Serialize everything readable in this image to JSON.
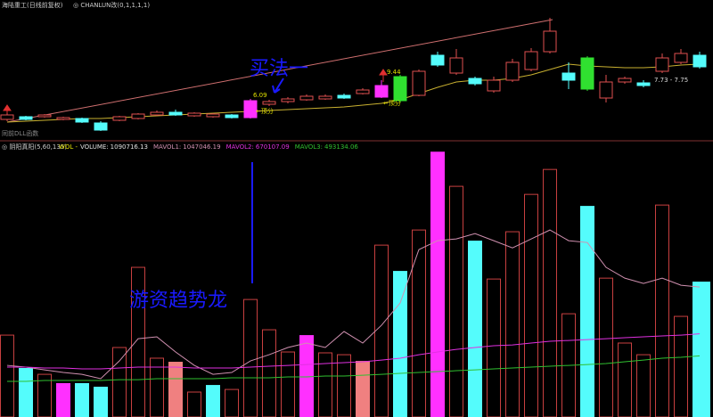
{
  "chart_data": [
    {
      "type": "candlestick",
      "title": "海陆重工(日线前复权)",
      "subtitle": "◎ CHANLUN改(0,1,1,1,1)",
      "footer": "同前DLL函数",
      "annotations": [
        "买法一",
        "6.09",
        "←顶分",
        "9.44",
        "←顶分",
        "7.73 - 7.75"
      ],
      "ylim": [
        4,
        12
      ],
      "open": [
        5.3,
        5.45,
        5.45,
        5.3,
        5.35,
        5.1,
        5.25,
        5.35,
        5.55,
        5.7,
        5.5,
        5.45,
        5.55,
        5.4,
        6.15,
        6.3,
        6.4,
        6.45,
        6.65,
        6.75,
        6.55,
        7.7,
        6.65,
        8.9,
        7.9,
        7.6,
        6.9,
        7.5,
        8.1,
        9.1,
        7.9,
        8.75,
        6.5,
        7.4,
        7.35,
        8.0,
        8.5,
        8.9
      ],
      "close": [
        5.55,
        5.3,
        5.55,
        5.4,
        5.15,
        4.7,
        5.45,
        5.6,
        5.7,
        5.55,
        5.65,
        5.6,
        5.4,
        6.35,
        6.3,
        6.45,
        6.6,
        6.6,
        6.5,
        6.95,
        7.2,
        6.35,
        8.0,
        8.35,
        8.75,
        7.3,
        7.5,
        8.5,
        9.1,
        10.25,
        7.5,
        7.0,
        7.4,
        7.6,
        7.2,
        8.75,
        9.0,
        8.25
      ],
      "high": [
        5.65,
        5.5,
        5.6,
        5.45,
        5.4,
        5.2,
        5.5,
        5.65,
        5.8,
        5.85,
        5.7,
        5.65,
        5.6,
        6.45,
        6.4,
        6.55,
        6.7,
        6.7,
        6.75,
        7.05,
        7.5,
        7.8,
        8.1,
        9.1,
        9.25,
        7.7,
        7.7,
        8.7,
        9.3,
        11.0,
        8.5,
        8.85,
        7.8,
        7.7,
        7.5,
        9.0,
        9.25,
        9.1
      ],
      "low": [
        5.2,
        5.25,
        5.4,
        5.25,
        5.1,
        4.65,
        5.2,
        5.3,
        5.5,
        5.5,
        5.45,
        5.4,
        5.35,
        5.35,
        6.05,
        6.2,
        6.35,
        6.4,
        6.45,
        6.7,
        6.5,
        6.25,
        6.6,
        8.25,
        7.8,
        7.2,
        6.8,
        7.4,
        8.0,
        9.0,
        7.0,
        6.9,
        6.25,
        7.3,
        7.1,
        7.9,
        8.4,
        8.15
      ],
      "colors": [
        "#e05050",
        "#54fcfc",
        "#e05050",
        "#e05050",
        "#54fcfc",
        "#54fcfc",
        "#e05050",
        "#e05050",
        "#e05050",
        "#54fcfc",
        "#e05050",
        "#e05050",
        "#54fcfc",
        "#ff30ff",
        "#e05050",
        "#e05050",
        "#e05050",
        "#e05050",
        "#54fcfc",
        "#e05050",
        "#ff30ff",
        "#30e030",
        "#e05050",
        "#54fcfc",
        "#e05050",
        "#54fcfc",
        "#e05050",
        "#e05050",
        "#e05050",
        "#e05050",
        "#54fcfc",
        "#30e030",
        "#e05050",
        "#e05050",
        "#54fcfc",
        "#e05050",
        "#e05050",
        "#54fcfc"
      ],
      "lines": [
        {
          "color": "#c8b030",
          "values": [
            5.15,
            5.2,
            5.25,
            5.3,
            5.35,
            5.35,
            5.4,
            5.45,
            5.5,
            5.55,
            5.6,
            5.65,
            5.7,
            5.75,
            5.8,
            5.85,
            5.9,
            5.95,
            6.0,
            6.1,
            6.2,
            6.4,
            6.75,
            7.1,
            7.4,
            7.5,
            7.5,
            7.6,
            7.8,
            8.1,
            8.4,
            8.3,
            8.25,
            8.2,
            8.2,
            8.25,
            8.35,
            8.4
          ]
        }
      ]
    },
    {
      "type": "bar",
      "title": "◎ 阴阳真阳(5,60,135)",
      "prefix": "WOL -",
      "annotations": [
        "游资趋势龙"
      ],
      "ylim": [
        0,
        2190000
      ],
      "colors": [
        "#c84040",
        "#54fcfc",
        "#c84040",
        "#ff30ff",
        "#54fcfc",
        "#54fcfc",
        "#c84040",
        "#c84040",
        "#c84040",
        "#f08080",
        "#c84040",
        "#54fcfc",
        "#c84040",
        "#c84040",
        "#c84040",
        "#c84040",
        "#ff30ff",
        "#c84040",
        "#c84040",
        "#f08080",
        "#c84040",
        "#54fcfc",
        "#c84040",
        "#ff30ff",
        "#c84040",
        "#54fcfc",
        "#c84040",
        "#c84040",
        "#c84040",
        "#c84040",
        "#c84040",
        "#54fcfc",
        "#c84040",
        "#c84040",
        "#c84040",
        "#c84040",
        "#c84040",
        "#54fcfc"
      ],
      "hollow": [
        true,
        false,
        true,
        false,
        false,
        false,
        true,
        true,
        true,
        false,
        true,
        false,
        true,
        true,
        true,
        true,
        false,
        true,
        true,
        false,
        true,
        false,
        true,
        false,
        true,
        false,
        true,
        true,
        true,
        true,
        true,
        false,
        true,
        true,
        true,
        true,
        true,
        false
      ],
      "series": [
        {
          "name": "VOLUME:",
          "color": "#e0e0e0",
          "values": [
            660000,
            395000,
            344000,
            273000,
            273000,
            244000,
            560000,
            1206000,
            474000,
            445000,
            201000,
            258000,
            222000,
            947000,
            703000,
            524000,
            660000,
            517000,
            502000,
            452000,
            1385000,
            1177000,
            1507000,
            2138000,
            1859000,
            1421000,
            1112000,
            1493000,
            1794000,
            1995000,
            832000,
            1701000,
            1119000,
            596000,
            502000,
            1708000,
            811000,
            1090716.13
          ]
        },
        {
          "name": "MAVOL1:",
          "color": "#d090b0",
          "values": [
            416000,
            402000,
            380000,
            359000,
            344000,
            309000,
            452000,
            631000,
            646000,
            524000,
            416000,
            344000,
            359000,
            452000,
            502000,
            560000,
            596000,
            560000,
            689000,
            596000,
            739000,
            919000,
            1349000,
            1421000,
            1435000,
            1478000,
            1421000,
            1363000,
            1435000,
            1507000,
            1421000,
            1406000,
            1206000,
            1119000,
            1076000,
            1119000,
            1062000,
            1047046.19
          ]
        },
        {
          "name": "MAVOL2:",
          "color": "#e030e0",
          "values": [
            402000,
            402000,
            395000,
            395000,
            388000,
            388000,
            395000,
            402000,
            402000,
            402000,
            395000,
            395000,
            395000,
            402000,
            409000,
            416000,
            423000,
            431000,
            438000,
            445000,
            459000,
            474000,
            502000,
            524000,
            545000,
            560000,
            574000,
            581000,
            596000,
            610000,
            617000,
            624000,
            631000,
            639000,
            646000,
            653000,
            660000,
            670107.09
          ]
        },
        {
          "name": "MAVOL3:",
          "color": "#30c030",
          "values": [
            287000,
            287000,
            294000,
            294000,
            294000,
            294000,
            301000,
            301000,
            309000,
            309000,
            309000,
            309000,
            316000,
            316000,
            316000,
            323000,
            323000,
            330000,
            330000,
            337000,
            344000,
            352000,
            359000,
            366000,
            373000,
            380000,
            388000,
            395000,
            402000,
            409000,
            416000,
            423000,
            431000,
            445000,
            459000,
            474000,
            481000,
            493134.06
          ]
        }
      ]
    }
  ]
}
